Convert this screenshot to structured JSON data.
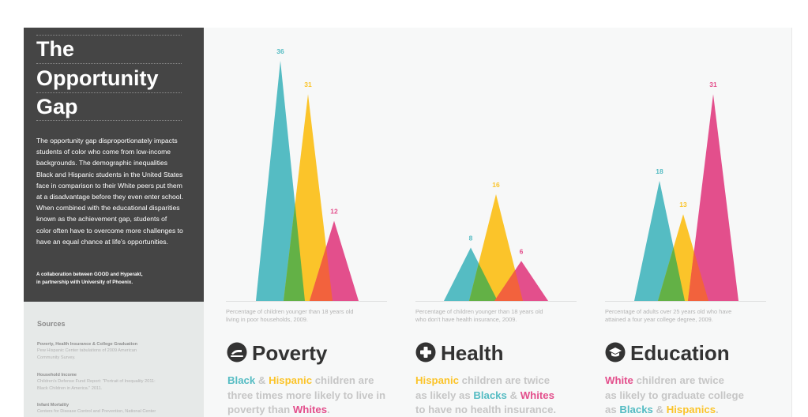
{
  "sidebar": {
    "title_lines": [
      "The",
      "Opportunity",
      "Gap"
    ],
    "intro": "The opportunity gap disproportionately impacts students of color who come from low-income backgrounds. The demographic inequalities Black and Hispanic students in the United States face in comparison to their White peers put them at a disadvantage before they even enter school. When combined with the educational disparities known as the achievement gap, students of color often have to overcome more challenges to have an equal chance at life's opportunities.",
    "credit_lines": [
      "A collaboration between GOOD and Hyperakt,",
      "in partnership with University of Phoenix."
    ],
    "sources_heading": "Sources",
    "sources": [
      {
        "heading": "Poverty, Health Insurance & College Graduation",
        "lines": [
          "Pew Hispanic Center tabulations of 2009 American",
          "Community Survey."
        ]
      },
      {
        "heading": "Household Income",
        "lines": [
          "Children's Defense Fund Report: \"Portrait of Inequality 2011:",
          "Black Children in America.\" 2011."
        ]
      },
      {
        "heading": "Infant Mortality",
        "lines": [
          "Centers for Disease Control and Prevention, National Center"
        ]
      }
    ]
  },
  "colors": {
    "black": "#55bcc3",
    "hispanic": "#fbc42a",
    "white": "#e34f8c",
    "green": "#63b146",
    "orange": "#f2623d",
    "sidebar": "#454545"
  },
  "sections": [
    {
      "key": "poverty",
      "icon": "poverty-icon",
      "title": "Poverty",
      "note_lines": [
        "Percentage of children younger than 18 years old",
        "living in poor households, 2009."
      ],
      "desc_lines": [
        [
          {
            "t": "Black",
            "c": "black"
          },
          {
            "t": " & ",
            "c": ""
          },
          {
            "t": "Hispanic",
            "c": "hispanic"
          },
          {
            "t": " children are",
            "c": ""
          }
        ],
        [
          {
            "t": "three times more likely to live in",
            "c": ""
          }
        ],
        [
          {
            "t": "poverty than ",
            "c": ""
          },
          {
            "t": "Whites",
            "c": "white"
          },
          {
            "t": ".",
            "c": ""
          }
        ]
      ]
    },
    {
      "key": "health",
      "icon": "health-icon",
      "title": "Health",
      "note_lines": [
        "Percentage of children younger than 18 years old",
        "who don't have health insurance, 2009."
      ],
      "desc_lines": [
        [
          {
            "t": "Hispanic",
            "c": "hispanic"
          },
          {
            "t": " children are twice",
            "c": ""
          }
        ],
        [
          {
            "t": "as likely as ",
            "c": ""
          },
          {
            "t": "Blacks",
            "c": "black"
          },
          {
            "t": " & ",
            "c": ""
          },
          {
            "t": "Whites",
            "c": "white"
          }
        ],
        [
          {
            "t": "to have no health insurance.",
            "c": ""
          }
        ]
      ]
    },
    {
      "key": "education",
      "icon": "education-icon",
      "title": "Education",
      "note_lines": [
        "Percentage of adults over 25 years old who have",
        "attained a four year college degree, 2009."
      ],
      "desc_lines": [
        [
          {
            "t": "White",
            "c": "white"
          },
          {
            "t": " children are twice",
            "c": ""
          }
        ],
        [
          {
            "t": "as likely to graduate college",
            "c": ""
          }
        ],
        [
          {
            "t": "as ",
            "c": ""
          },
          {
            "t": "Blacks",
            "c": "black"
          },
          {
            "t": " & ",
            "c": ""
          },
          {
            "t": "Hispanics",
            "c": "hispanic"
          },
          {
            "t": ".",
            "c": ""
          }
        ]
      ]
    }
  ],
  "chart_data": [
    {
      "type": "area",
      "title": "Poverty",
      "categories": [
        "Black",
        "Hispanic",
        "White"
      ],
      "values": [
        36,
        31,
        12
      ],
      "ylim": [
        0,
        36
      ],
      "grid": false,
      "legend": "none"
    },
    {
      "type": "area",
      "title": "Health",
      "categories": [
        "Black",
        "Hispanic",
        "White"
      ],
      "values": [
        8,
        16,
        6
      ],
      "ylim": [
        0,
        36
      ],
      "grid": false,
      "legend": "none"
    },
    {
      "type": "area",
      "title": "Education",
      "categories": [
        "Black",
        "Hispanic",
        "White"
      ],
      "values": [
        18,
        13,
        31
      ],
      "ylim": [
        0,
        36
      ],
      "grid": false,
      "legend": "none"
    }
  ]
}
